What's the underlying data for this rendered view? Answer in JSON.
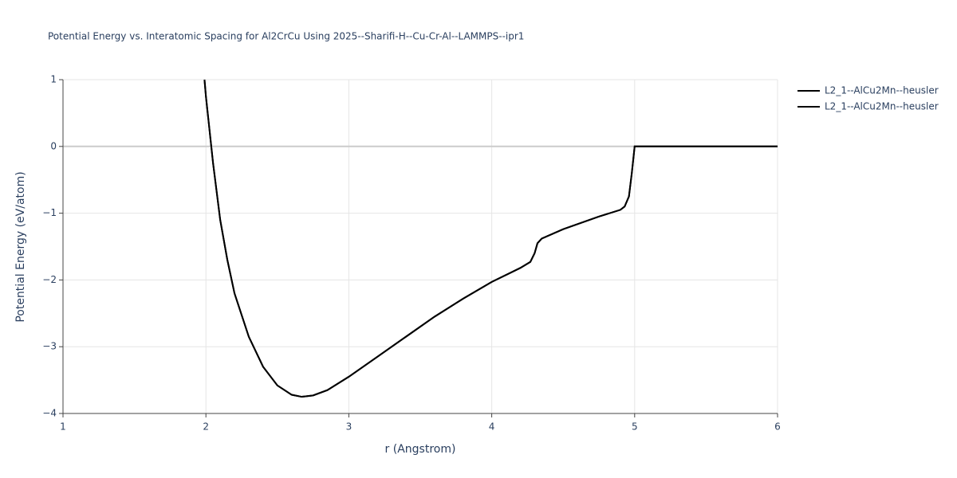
{
  "chart_data": {
    "type": "line",
    "title": "Potential Energy vs. Interatomic Spacing for Al2CrCu Using 2025--Sharifi-H--Cu-Cr-Al--LAMMPS--ipr1",
    "x_label": "r (Angstrom)",
    "y_label": "Potential Energy (eV/atom)",
    "x": [
      1.99,
      2.0,
      2.05,
      2.1,
      2.15,
      2.2,
      2.3,
      2.4,
      2.5,
      2.6,
      2.67,
      2.75,
      2.85,
      3.0,
      3.2,
      3.4,
      3.6,
      3.8,
      4.0,
      4.2,
      4.27,
      4.3,
      4.32,
      4.35,
      4.5,
      4.75,
      4.9,
      4.93,
      4.96,
      4.98,
      5.0,
      6.0
    ],
    "series": [
      {
        "name": "L2_1--AlCu2Mn--heusler",
        "color": "#000000",
        "values": [
          1.0,
          0.75,
          -0.25,
          -1.1,
          -1.7,
          -2.2,
          -2.85,
          -3.3,
          -3.58,
          -3.72,
          -3.75,
          -3.73,
          -3.65,
          -3.45,
          -3.15,
          -2.85,
          -2.55,
          -2.28,
          -2.03,
          -1.82,
          -1.73,
          -1.6,
          -1.45,
          -1.38,
          -1.24,
          -1.05,
          -0.95,
          -0.9,
          -0.75,
          -0.4,
          0,
          0
        ]
      },
      {
        "name": "L2_1--AlCu2Mn--heusler",
        "color": "#000000",
        "values": [
          1.0,
          0.75,
          -0.25,
          -1.1,
          -1.7,
          -2.2,
          -2.85,
          -3.3,
          -3.58,
          -3.72,
          -3.75,
          -3.73,
          -3.65,
          -3.45,
          -3.15,
          -2.85,
          -2.55,
          -2.28,
          -2.03,
          -1.82,
          -1.73,
          -1.6,
          -1.45,
          -1.38,
          -1.24,
          -1.05,
          -0.95,
          -0.9,
          -0.75,
          -0.4,
          0,
          0
        ]
      }
    ],
    "xlim": [
      1,
      6
    ],
    "xticks": [
      1,
      2,
      3,
      4,
      5,
      6
    ],
    "ylim": [
      -4,
      1
    ],
    "yticks": [
      {
        "value": -4,
        "label": "−4"
      },
      {
        "value": -3,
        "label": "−3"
      },
      {
        "value": -2,
        "label": "−2"
      },
      {
        "value": -1,
        "label": "−1"
      },
      0,
      1
    ],
    "grid": true,
    "legend": "right"
  }
}
